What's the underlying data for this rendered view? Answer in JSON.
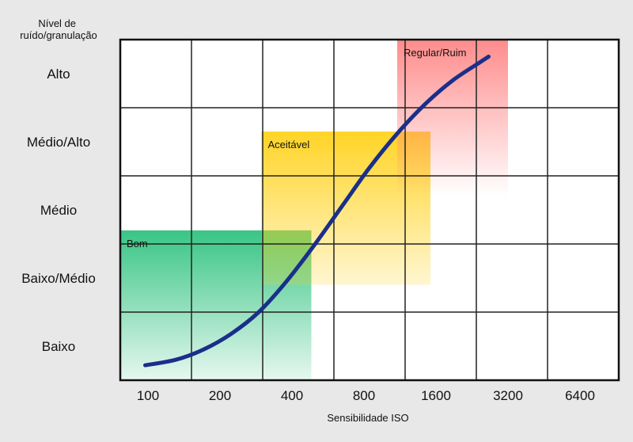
{
  "chart_data": {
    "type": "line",
    "ylabel": "Nível de ruído/granulação",
    "ylabel_lines": [
      "Nível de",
      "ruído/granulação"
    ],
    "xlabel": "Sensibilidade ISO",
    "x_categories": [
      "100",
      "200",
      "400",
      "800",
      "1600",
      "3200",
      "6400"
    ],
    "y_categories": [
      "Baixo",
      "Baixo/Médio",
      "Médio",
      "Médio/Alto",
      "Alto"
    ],
    "x_domain": [
      0,
      9
    ],
    "y_domain": [
      0,
      5
    ],
    "grid": true,
    "regions": [
      {
        "name": "Bom",
        "x": [
          0,
          3.45
        ],
        "y": [
          0,
          2.2
        ],
        "color": "#2ec27e"
      },
      {
        "name": "Aceitável",
        "x": [
          2.55,
          5.6
        ],
        "y": [
          1.4,
          3.65
        ],
        "color": "#ffd21a"
      },
      {
        "name": "Regular/Ruim",
        "x": [
          5.0,
          7.0
        ],
        "y": [
          2.7,
          5.0
        ],
        "color": "#ff7f7f"
      }
    ],
    "series": [
      {
        "color": "#1a2f8a",
        "points": [
          [
            0.45,
            0.22
          ],
          [
            1.0,
            0.3
          ],
          [
            1.5,
            0.45
          ],
          [
            2.0,
            0.68
          ],
          [
            2.5,
            1.0
          ],
          [
            3.0,
            1.45
          ],
          [
            3.5,
            1.98
          ],
          [
            4.0,
            2.55
          ],
          [
            4.5,
            3.12
          ],
          [
            5.0,
            3.62
          ],
          [
            5.5,
            4.05
          ],
          [
            6.0,
            4.4
          ],
          [
            6.5,
            4.67
          ],
          [
            6.65,
            4.75
          ]
        ]
      }
    ]
  }
}
